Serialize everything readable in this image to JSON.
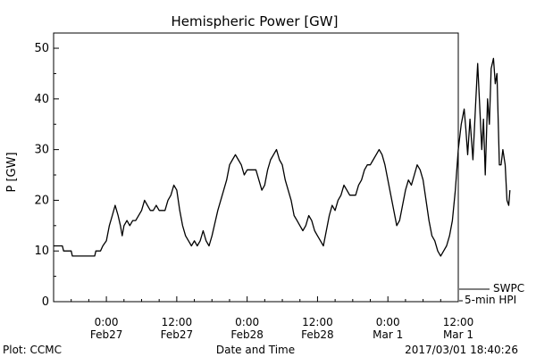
{
  "chart_data": {
    "type": "line",
    "title": "Hemispheric Power [GW]",
    "ylabel": "P [GW]",
    "xlabel": "Date and Time",
    "ylim": [
      0,
      53
    ],
    "yticks": [
      0,
      10,
      20,
      30,
      40,
      50
    ],
    "xlim_hours": [
      -9,
      60
    ],
    "xticks": [
      {
        "hour": 0,
        "time": "0:00",
        "date": "Feb27"
      },
      {
        "hour": 12,
        "time": "12:00",
        "date": "Feb27"
      },
      {
        "hour": 24,
        "time": "0:00",
        "date": "Feb28"
      },
      {
        "hour": 36,
        "time": "12:00",
        "date": "Feb28"
      },
      {
        "hour": 48,
        "time": "0:00",
        "date": "Mar 1"
      },
      {
        "hour": 60,
        "time": "12:00",
        "date": "Mar 1"
      }
    ],
    "series": [
      {
        "name": "5-min HPI",
        "color": "#000000",
        "points": [
          [
            -9.0,
            11
          ],
          [
            -7.5,
            11
          ],
          [
            -7.3,
            10
          ],
          [
            -6.0,
            10
          ],
          [
            -5.8,
            9
          ],
          [
            -2.0,
            9
          ],
          [
            -1.8,
            10
          ],
          [
            -1.0,
            10
          ],
          [
            -0.6,
            11
          ],
          [
            0.0,
            12
          ],
          [
            0.5,
            15
          ],
          [
            1.0,
            17
          ],
          [
            1.5,
            19
          ],
          [
            2.0,
            17
          ],
          [
            2.4,
            15
          ],
          [
            2.7,
            13
          ],
          [
            3.0,
            15
          ],
          [
            3.5,
            16
          ],
          [
            4.0,
            15
          ],
          [
            4.5,
            16
          ],
          [
            5.0,
            16
          ],
          [
            6.0,
            18
          ],
          [
            6.5,
            20
          ],
          [
            7.0,
            19
          ],
          [
            7.5,
            18
          ],
          [
            8.0,
            18
          ],
          [
            8.5,
            19
          ],
          [
            9.0,
            18
          ],
          [
            10.0,
            18
          ],
          [
            10.5,
            20
          ],
          [
            11.0,
            21
          ],
          [
            11.5,
            23
          ],
          [
            12.0,
            22
          ],
          [
            12.5,
            18
          ],
          [
            13.0,
            15
          ],
          [
            13.5,
            13
          ],
          [
            14.0,
            12
          ],
          [
            14.5,
            11
          ],
          [
            15.0,
            12
          ],
          [
            15.5,
            11
          ],
          [
            16.0,
            12
          ],
          [
            16.5,
            14
          ],
          [
            17.0,
            12
          ],
          [
            17.5,
            11
          ],
          [
            18.0,
            13
          ],
          [
            19.0,
            18
          ],
          [
            19.5,
            20
          ],
          [
            20.0,
            22
          ],
          [
            20.5,
            24
          ],
          [
            21.0,
            27
          ],
          [
            21.5,
            28
          ],
          [
            22.0,
            29
          ],
          [
            22.5,
            28
          ],
          [
            23.0,
            27
          ],
          [
            23.5,
            25
          ],
          [
            24.0,
            26
          ],
          [
            25.0,
            26
          ],
          [
            25.5,
            26
          ],
          [
            26.0,
            24
          ],
          [
            26.5,
            22
          ],
          [
            27.0,
            23
          ],
          [
            27.5,
            26
          ],
          [
            28.0,
            28
          ],
          [
            28.5,
            29
          ],
          [
            29.0,
            30
          ],
          [
            29.5,
            28
          ],
          [
            30.0,
            27
          ],
          [
            30.5,
            24
          ],
          [
            31.0,
            22
          ],
          [
            31.5,
            20
          ],
          [
            32.0,
            17
          ],
          [
            32.5,
            16
          ],
          [
            33.0,
            15
          ],
          [
            33.5,
            14
          ],
          [
            34.0,
            15
          ],
          [
            34.5,
            17
          ],
          [
            35.0,
            16
          ],
          [
            35.5,
            14
          ],
          [
            36.0,
            13
          ],
          [
            36.5,
            12
          ],
          [
            37.0,
            11
          ],
          [
            37.5,
            14
          ],
          [
            38.0,
            17
          ],
          [
            38.5,
            19
          ],
          [
            39.0,
            18
          ],
          [
            39.5,
            20
          ],
          [
            40.0,
            21
          ],
          [
            40.5,
            23
          ],
          [
            41.0,
            22
          ],
          [
            41.5,
            21
          ],
          [
            42.0,
            21
          ],
          [
            42.5,
            21
          ],
          [
            43.0,
            23
          ],
          [
            43.5,
            24
          ],
          [
            44.0,
            26
          ],
          [
            44.5,
            27
          ],
          [
            45.0,
            27
          ],
          [
            45.5,
            28
          ],
          [
            46.0,
            29
          ],
          [
            46.5,
            30
          ],
          [
            47.0,
            29
          ],
          [
            47.5,
            27
          ],
          [
            48.0,
            24
          ],
          [
            48.5,
            21
          ],
          [
            49.0,
            18
          ],
          [
            49.5,
            15
          ],
          [
            50.0,
            16
          ],
          [
            50.5,
            19
          ],
          [
            51.0,
            22
          ],
          [
            51.5,
            24
          ],
          [
            52.0,
            23
          ],
          [
            52.5,
            25
          ],
          [
            53.0,
            27
          ],
          [
            53.5,
            26
          ],
          [
            54.0,
            24
          ],
          [
            54.5,
            20
          ],
          [
            55.0,
            16
          ],
          [
            55.5,
            13
          ],
          [
            56.0,
            12
          ],
          [
            56.5,
            10
          ],
          [
            57.0,
            9
          ],
          [
            57.5,
            10
          ],
          [
            58.0,
            11
          ],
          [
            58.5,
            13
          ],
          [
            59.0,
            16
          ],
          [
            59.5,
            22
          ],
          [
            60.0,
            30
          ],
          [
            60.5,
            35
          ],
          [
            61.0,
            38
          ],
          [
            61.3,
            34
          ],
          [
            61.6,
            29
          ],
          [
            62.0,
            36
          ],
          [
            62.5,
            28
          ],
          [
            63.0,
            40
          ],
          [
            63.3,
            47
          ],
          [
            63.6,
            40
          ],
          [
            64.0,
            30
          ],
          [
            64.3,
            36
          ],
          [
            64.6,
            25
          ],
          [
            65.0,
            40
          ],
          [
            65.3,
            35
          ],
          [
            65.6,
            46
          ],
          [
            66.0,
            48
          ],
          [
            66.3,
            43
          ],
          [
            66.6,
            45
          ],
          [
            67.0,
            27
          ],
          [
            67.3,
            27
          ],
          [
            67.6,
            30
          ],
          [
            68.0,
            27
          ],
          [
            68.3,
            20
          ],
          [
            68.6,
            19
          ],
          [
            68.8,
            22
          ]
        ]
      }
    ],
    "legend": [
      {
        "label": "SWPC"
      },
      {
        "label": "5-min HPI"
      }
    ],
    "grid": false
  },
  "footer": {
    "plot_credit": "Plot: CCMC",
    "timestamp": "2017/03/01  18:40:26"
  }
}
